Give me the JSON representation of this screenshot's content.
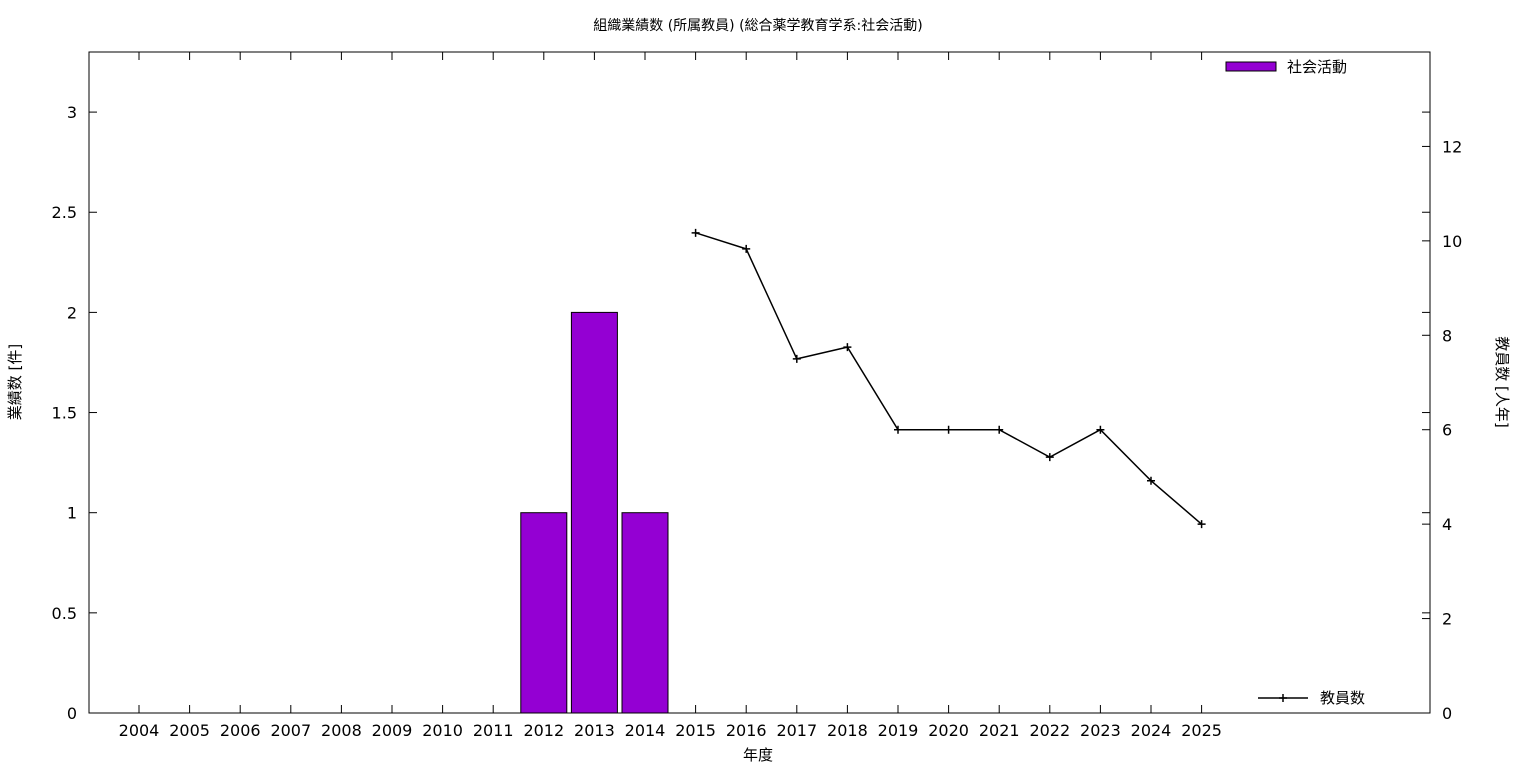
{
  "chart_data": {
    "type": "bar",
    "title": "組織業績数 (所属教員) (総合薬学教育学系:社会活動)",
    "xlabel": "年度",
    "ylabel": "業績数 [件]",
    "y2label": "教員数 [人年]",
    "categories": [
      "2004",
      "2005",
      "2006",
      "2007",
      "2008",
      "2009",
      "2010",
      "2011",
      "2012",
      "2013",
      "2014",
      "2015",
      "2016",
      "2017",
      "2018",
      "2019",
      "2020",
      "2021",
      "2022",
      "2023",
      "2024",
      "2025"
    ],
    "series": [
      {
        "name": "社会活動",
        "type": "bar",
        "axis": "left",
        "color": "#9400d3",
        "values": [
          0,
          0,
          0,
          0,
          0,
          0,
          0,
          0,
          1,
          2,
          1,
          0,
          0,
          0,
          0,
          0,
          0,
          0,
          0,
          0,
          0,
          0
        ]
      },
      {
        "name": "教員数",
        "type": "line",
        "axis": "right",
        "color": "#000000",
        "values": [
          null,
          null,
          null,
          null,
          null,
          null,
          null,
          null,
          null,
          null,
          null,
          10.17,
          9.83,
          7.5,
          7.75,
          6.0,
          6.0,
          6.0,
          5.42,
          6.0,
          4.92,
          4.0
        ]
      }
    ],
    "ylim": [
      0,
      3.3
    ],
    "y2lim": [
      0,
      14
    ],
    "yticks": [
      "0",
      "0.5",
      "1",
      "1.5",
      "2",
      "2.5",
      "3"
    ],
    "y2ticks": [
      "0",
      "2",
      "4",
      "6",
      "8",
      "10",
      "12"
    ],
    "legend": [
      "top-right",
      "bottom-right"
    ]
  }
}
